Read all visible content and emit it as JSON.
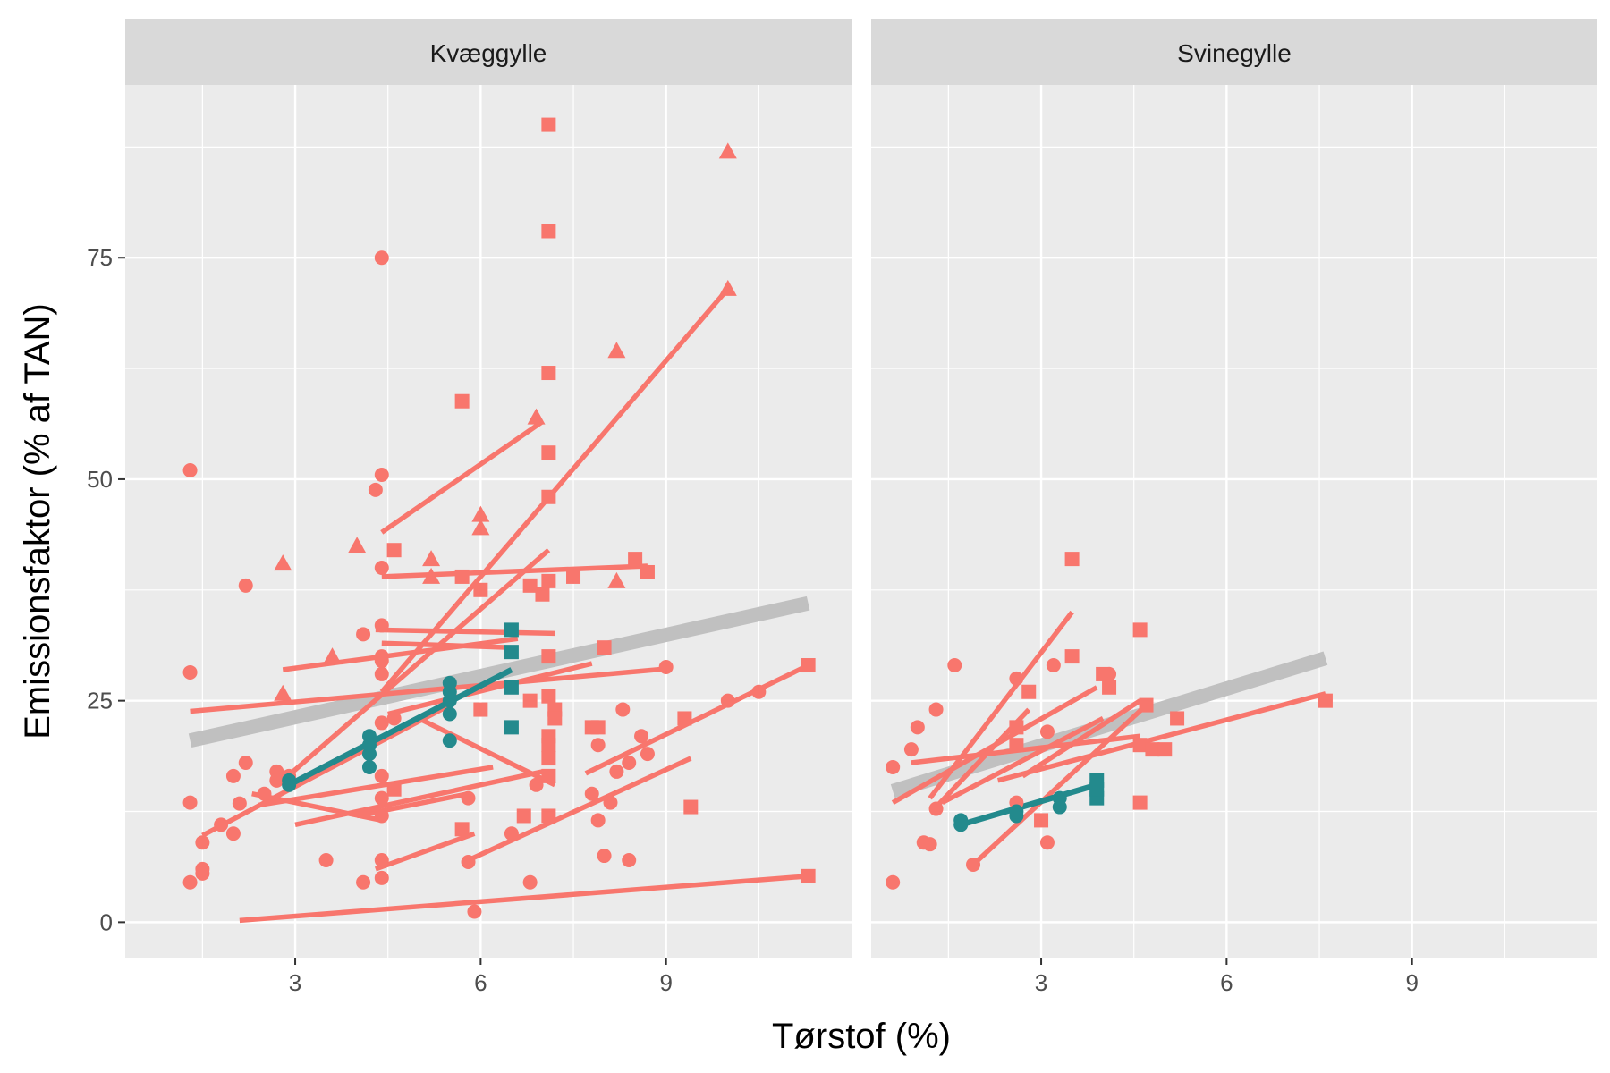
{
  "chart_data": {
    "type": "scatter",
    "xlabel": "Tørstof (%)",
    "ylabel": "Emissionsfaktor (% af TAN)",
    "xlim": [
      0.25,
      12.0
    ],
    "ylim": [
      -4.0,
      94.5
    ],
    "x_ticks": [
      3,
      6,
      9
    ],
    "y_ticks": [
      0,
      25,
      50,
      75
    ],
    "grid": true,
    "colors": {
      "primary": "#F8766D",
      "secondary": "#238A8D",
      "overall": "#C0C0C0"
    },
    "panels": [
      {
        "strip": "Kvæggylle",
        "overall_line": [
          [
            1.3,
            20.5
          ],
          [
            11.3,
            36.0
          ]
        ],
        "highlight_lines": [
          [
            [
              2.9,
              15.5
            ],
            [
              6.5,
              28.5
            ]
          ]
        ],
        "red_lines": [
          [
            [
              1.3,
              23.8
            ],
            [
              9.0,
              28.6
            ]
          ],
          [
            [
              1.5,
              9.8
            ],
            [
              5.5,
              24.5
            ]
          ],
          [
            [
              2.1,
              0.2
            ],
            [
              11.3,
              5.2
            ]
          ],
          [
            [
              2.8,
              16.0
            ],
            [
              7.1,
              42.0
            ]
          ],
          [
            [
              2.8,
              28.5
            ],
            [
              6.6,
              32.0
            ]
          ],
          [
            [
              4.4,
              44.0
            ],
            [
              7.0,
              56.5
            ]
          ],
          [
            [
              4.4,
              26.0
            ],
            [
              10.0,
              71.5
            ]
          ],
          [
            [
              4.4,
              39.0
            ],
            [
              8.7,
              40.2
            ]
          ],
          [
            [
              4.3,
              33.0
            ],
            [
              7.2,
              32.6
            ]
          ],
          [
            [
              4.4,
              31.5
            ],
            [
              6.5,
              31.0
            ]
          ],
          [
            [
              3.0,
              11.0
            ],
            [
              7.0,
              17.0
            ]
          ],
          [
            [
              4.0,
              12.0
            ],
            [
              5.8,
              14.5
            ]
          ],
          [
            [
              4.4,
              11.5
            ],
            [
              2.3,
              14.5
            ]
          ],
          [
            [
              2.4,
              13.2
            ],
            [
              6.2,
              17.5
            ]
          ],
          [
            [
              4.3,
              6.0
            ],
            [
              5.9,
              10.0
            ]
          ],
          [
            [
              5.8,
              7.0
            ],
            [
              9.4,
              18.5
            ]
          ],
          [
            [
              4.5,
              23.5
            ],
            [
              7.8,
              29.2
            ]
          ],
          [
            [
              5.0,
              23.0
            ],
            [
              7.2,
              15.5
            ]
          ],
          [
            [
              7.7,
              16.8
            ],
            [
              11.3,
              29.0
            ]
          ]
        ],
        "circles": [
          [
            1.3,
            51.0
          ],
          [
            1.3,
            28.2
          ],
          [
            1.3,
            13.5
          ],
          [
            1.3,
            4.5
          ],
          [
            1.5,
            9.0
          ],
          [
            1.5,
            6.0
          ],
          [
            1.5,
            5.5
          ],
          [
            1.8,
            11.0
          ],
          [
            2.0,
            16.5
          ],
          [
            2.0,
            10.0
          ],
          [
            2.1,
            13.4
          ],
          [
            2.2,
            38.0
          ],
          [
            2.2,
            18.0
          ],
          [
            2.5,
            14.5
          ],
          [
            2.7,
            17.0
          ],
          [
            2.7,
            16.0
          ],
          [
            2.9,
            16.5
          ],
          [
            3.5,
            7.0
          ],
          [
            4.1,
            32.5
          ],
          [
            4.1,
            4.5
          ],
          [
            4.3,
            48.8
          ],
          [
            4.4,
            75.0
          ],
          [
            4.4,
            50.5
          ],
          [
            4.4,
            40.0
          ],
          [
            4.4,
            33.5
          ],
          [
            4.4,
            30.0
          ],
          [
            4.4,
            29.5
          ],
          [
            4.4,
            28.0
          ],
          [
            4.4,
            22.5
          ],
          [
            4.4,
            16.5
          ],
          [
            4.4,
            14.0
          ],
          [
            4.4,
            12.0
          ],
          [
            4.4,
            7.0
          ],
          [
            4.4,
            5.0
          ],
          [
            4.6,
            23.0
          ],
          [
            5.8,
            14.0
          ],
          [
            5.8,
            6.8
          ],
          [
            5.9,
            1.2
          ],
          [
            6.5,
            10.0
          ],
          [
            6.8,
            4.5
          ],
          [
            6.9,
            15.5
          ],
          [
            7.8,
            14.5
          ],
          [
            7.9,
            11.5
          ],
          [
            7.9,
            20.0
          ],
          [
            8.0,
            7.5
          ],
          [
            8.1,
            13.5
          ],
          [
            8.2,
            17.0
          ],
          [
            8.3,
            24.0
          ],
          [
            8.4,
            7.0
          ],
          [
            8.4,
            18.0
          ],
          [
            8.6,
            21.0
          ],
          [
            8.7,
            19.0
          ],
          [
            9.0,
            28.8
          ],
          [
            10.0,
            25.0
          ],
          [
            10.5,
            26.0
          ]
        ],
        "squares": [
          [
            4.6,
            42.0
          ],
          [
            4.6,
            15.0
          ],
          [
            5.7,
            39.0
          ],
          [
            5.7,
            10.5
          ],
          [
            5.7,
            58.8
          ],
          [
            6.0,
            37.5
          ],
          [
            6.0,
            24.0
          ],
          [
            6.7,
            12.0
          ],
          [
            6.8,
            38.0
          ],
          [
            6.8,
            25.0
          ],
          [
            7.0,
            37.0
          ],
          [
            7.1,
            90.0
          ],
          [
            7.1,
            78.0
          ],
          [
            7.1,
            62.0
          ],
          [
            7.1,
            53.0
          ],
          [
            7.1,
            48.0
          ],
          [
            7.1,
            38.5
          ],
          [
            7.1,
            30.0
          ],
          [
            7.1,
            25.5
          ],
          [
            7.1,
            21.0
          ],
          [
            7.1,
            20.0
          ],
          [
            7.1,
            18.5
          ],
          [
            7.1,
            16.5
          ],
          [
            7.1,
            12.0
          ],
          [
            7.2,
            24.0
          ],
          [
            7.2,
            23.0
          ],
          [
            7.5,
            39.0
          ],
          [
            7.8,
            22.0
          ],
          [
            8.0,
            31.0
          ],
          [
            7.9,
            22.0
          ],
          [
            8.5,
            41.0
          ],
          [
            8.7,
            39.5
          ],
          [
            9.3,
            23.0
          ],
          [
            9.4,
            13.0
          ],
          [
            11.3,
            29.0
          ],
          [
            11.3,
            5.2
          ]
        ],
        "triangles": [
          [
            2.8,
            40.5
          ],
          [
            2.8,
            25.8
          ],
          [
            3.6,
            30.0
          ],
          [
            4.0,
            42.5
          ],
          [
            5.2,
            41.0
          ],
          [
            5.2,
            39.0
          ],
          [
            6.0,
            46.0
          ],
          [
            6.0,
            44.5
          ],
          [
            6.9,
            57.0
          ],
          [
            8.2,
            64.5
          ],
          [
            8.2,
            38.5
          ],
          [
            10.0,
            87.0
          ],
          [
            10.0,
            71.5
          ]
        ],
        "highlight_circles": [
          [
            2.9,
            15.5
          ],
          [
            2.9,
            16.0
          ],
          [
            4.2,
            17.5
          ],
          [
            4.2,
            19.0
          ],
          [
            4.2,
            20.0
          ],
          [
            4.2,
            21.0
          ],
          [
            5.5,
            20.5
          ],
          [
            5.5,
            23.5
          ],
          [
            5.5,
            25.0
          ],
          [
            5.5,
            26.0
          ],
          [
            5.5,
            27.0
          ]
        ],
        "highlight_squares": [
          [
            6.5,
            33.0
          ],
          [
            6.5,
            30.5
          ],
          [
            6.5,
            26.5
          ],
          [
            6.5,
            22.0
          ]
        ]
      },
      {
        "strip": "Svinegylle",
        "overall_line": [
          [
            0.6,
            14.8
          ],
          [
            7.6,
            29.8
          ]
        ],
        "highlight_lines": [
          [
            [
              1.7,
              11.0
            ],
            [
              3.9,
              15.5
            ]
          ]
        ],
        "red_lines": [
          [
            [
              0.6,
              13.5
            ],
            [
              3.9,
              26.5
            ]
          ],
          [
            [
              0.9,
              18.0
            ],
            [
              4.6,
              21.0
            ]
          ],
          [
            [
              1.2,
              14.0
            ],
            [
              3.5,
              35.0
            ]
          ],
          [
            [
              1.3,
              13.0
            ],
            [
              2.8,
              24.0
            ]
          ],
          [
            [
              1.4,
              13.5
            ],
            [
              4.0,
              23.0
            ]
          ],
          [
            [
              1.9,
              6.5
            ],
            [
              4.7,
              24.5
            ]
          ],
          [
            [
              2.3,
              16.0
            ],
            [
              7.6,
              25.8
            ]
          ],
          [
            [
              2.7,
              16.5
            ],
            [
              4.6,
              25.0
            ]
          ]
        ],
        "circles": [
          [
            0.6,
            17.5
          ],
          [
            0.6,
            4.5
          ],
          [
            0.9,
            19.5
          ],
          [
            1.0,
            22.0
          ],
          [
            1.1,
            9.0
          ],
          [
            1.2,
            8.8
          ],
          [
            1.3,
            24.0
          ],
          [
            1.3,
            12.8
          ],
          [
            1.6,
            29.0
          ],
          [
            1.9,
            6.5
          ],
          [
            2.6,
            27.5
          ],
          [
            2.6,
            13.5
          ],
          [
            3.1,
            21.5
          ],
          [
            3.1,
            9.0
          ],
          [
            3.2,
            29.0
          ],
          [
            4.1,
            28.0
          ]
        ],
        "squares": [
          [
            2.6,
            22.0
          ],
          [
            2.6,
            20.0
          ],
          [
            2.8,
            26.0
          ],
          [
            3.0,
            11.5
          ],
          [
            3.5,
            41.0
          ],
          [
            3.5,
            30.0
          ],
          [
            4.0,
            28.0
          ],
          [
            4.1,
            26.5
          ],
          [
            4.6,
            33.0
          ],
          [
            4.6,
            20.0
          ],
          [
            4.6,
            13.5
          ],
          [
            4.7,
            24.5
          ],
          [
            4.8,
            19.5
          ],
          [
            5.0,
            19.5
          ],
          [
            5.2,
            23.0
          ],
          [
            7.6,
            25.0
          ]
        ],
        "triangles": [],
        "highlight_circles": [
          [
            1.7,
            11.0
          ],
          [
            1.7,
            11.5
          ],
          [
            2.6,
            12.0
          ],
          [
            2.6,
            12.5
          ],
          [
            3.3,
            13.0
          ],
          [
            3.3,
            14.0
          ]
        ],
        "highlight_squares": [
          [
            3.9,
            14.0
          ],
          [
            3.9,
            15.0
          ],
          [
            3.9,
            16.0
          ]
        ]
      }
    ]
  }
}
